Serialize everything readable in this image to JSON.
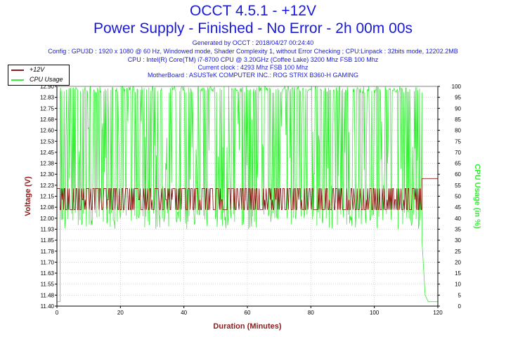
{
  "header": {
    "title": "OCCT 4.5.1 - +12V",
    "subtitle": "Power Supply - Finished - No Error - 2h 00m 00s",
    "generated": "Generated by OCCT : 2018/04/27 00:24:40",
    "config": "Config : GPU3D : 1920 x 1080 @ 60 Hz, Windowed mode, Shader Complexity 1, without Error Checking ; CPU:Linpack : 32bits mode, 12202.2MB",
    "cpu": "CPU : Intel(R) Core(TM) i7-8700 CPU @ 3.20GHz (Coffee Lake) 3200 Mhz FSB 100 Mhz",
    "clock": "Current clock : 4293 Mhz FSB 100 Mhz",
    "motherboard": "MotherBoard : ASUSTeK COMPUTER INC.: ROG STRIX B360-H GAMING"
  },
  "colors": {
    "voltage": "#8b1a1a",
    "cpu": "#33ee33",
    "title": "#1a1ad6",
    "grid": "#bbbbbb"
  },
  "chart_data": {
    "type": "line",
    "title": "OCCT 4.5.1 - +12V",
    "xlabel": "Duration (Minutes)",
    "ylabel": "Voltage (V)",
    "y2label": "CPU Usage (in %)",
    "xlim": [
      0,
      120
    ],
    "ylim": [
      11.4,
      12.95
    ],
    "y2lim": [
      0,
      100
    ],
    "grid": true,
    "legend_position": "top-left",
    "x_ticks": [
      "0",
      "20",
      "40",
      "60",
      "80",
      "100",
      "120"
    ],
    "y_ticks": [
      "12.90",
      "12.83",
      "12.75",
      "12.68",
      "12.60",
      "12.53",
      "12.45",
      "12.38",
      "12.30",
      "12.23",
      "12.15",
      "12.08",
      "12.00",
      "11.93",
      "11.85",
      "11.78",
      "11.70",
      "11.63",
      "11.55",
      "11.48",
      "11.40"
    ],
    "y2_ticks": [
      "100",
      "95",
      "90",
      "85",
      "80",
      "75",
      "70",
      "65",
      "60",
      "55",
      "50",
      "45",
      "40",
      "35",
      "30",
      "25",
      "20",
      "15",
      "10",
      "5",
      "0"
    ],
    "series": [
      {
        "name": "+12V",
        "axis": "left",
        "description": "oscillates between 12.08 and 12.23 V during load, steady 12.30 V after 115 min",
        "x": [
          0,
          1,
          1,
          115,
          115,
          120
        ],
        "y": [
          12.23,
          12.23,
          12.15,
          12.15,
          12.3,
          12.3
        ],
        "band_low": 12.08,
        "band_high": 12.23,
        "load_start": 1,
        "load_end": 115
      },
      {
        "name": "CPU Usage",
        "axis": "right",
        "description": "oscillates between about 35% and 100% during load, drops to about 2% after 115 min",
        "x": [
          0,
          1,
          1,
          115,
          115,
          116,
          117,
          120
        ],
        "y": [
          2,
          2,
          100,
          100,
          30,
          5,
          2,
          2
        ],
        "band_low": 35,
        "band_high": 100,
        "load_start": 1,
        "load_end": 115
      }
    ]
  }
}
